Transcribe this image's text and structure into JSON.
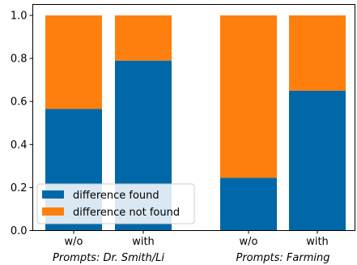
{
  "chart_data": {
    "type": "bar",
    "stacked": true,
    "x": [
      "w/o",
      "with",
      "w/o",
      "with"
    ],
    "groups": [
      "Prompts: Dr. Smith/Li",
      "Prompts: Farming"
    ],
    "group_of_bar": [
      0,
      0,
      1,
      1
    ],
    "series": [
      {
        "name": "difference found",
        "color": "#0068a8",
        "values": [
          0.565,
          0.79,
          0.245,
          0.65
        ]
      },
      {
        "name": "difference not found",
        "color": "#ff7f0e",
        "values": [
          0.435,
          0.21,
          0.755,
          0.35
        ]
      }
    ],
    "ylim": [
      0,
      1.0
    ],
    "yticks": [
      "0.0",
      "0.2",
      "0.4",
      "0.6",
      "0.8",
      "1.0"
    ],
    "ytick_values": [
      0,
      0.2,
      0.4,
      0.6,
      0.8,
      1.0
    ],
    "legend_position": "lower-left",
    "grid": false
  }
}
